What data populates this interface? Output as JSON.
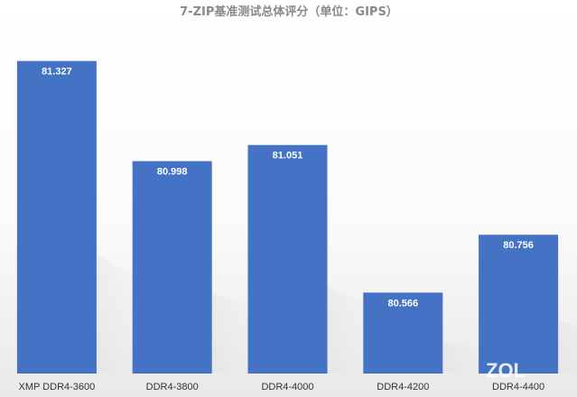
{
  "chart_data": {
    "type": "bar",
    "title": "7-ZIP基准测试总体评分（单位：GIPS）",
    "categories": [
      "XMP DDR4-3600",
      "DDR4-3800",
      "DDR4-4000",
      "DDR4-4200",
      "DDR4-4400"
    ],
    "values": [
      81.327,
      80.998,
      81.051,
      80.566,
      80.756
    ],
    "value_labels": [
      "81.327",
      "80.998",
      "81.051",
      "80.566",
      "80.756"
    ],
    "ylim": [
      80.3,
      81.4
    ],
    "grid": false,
    "bar_color": "#4472c4",
    "watermark": "ZOL"
  }
}
